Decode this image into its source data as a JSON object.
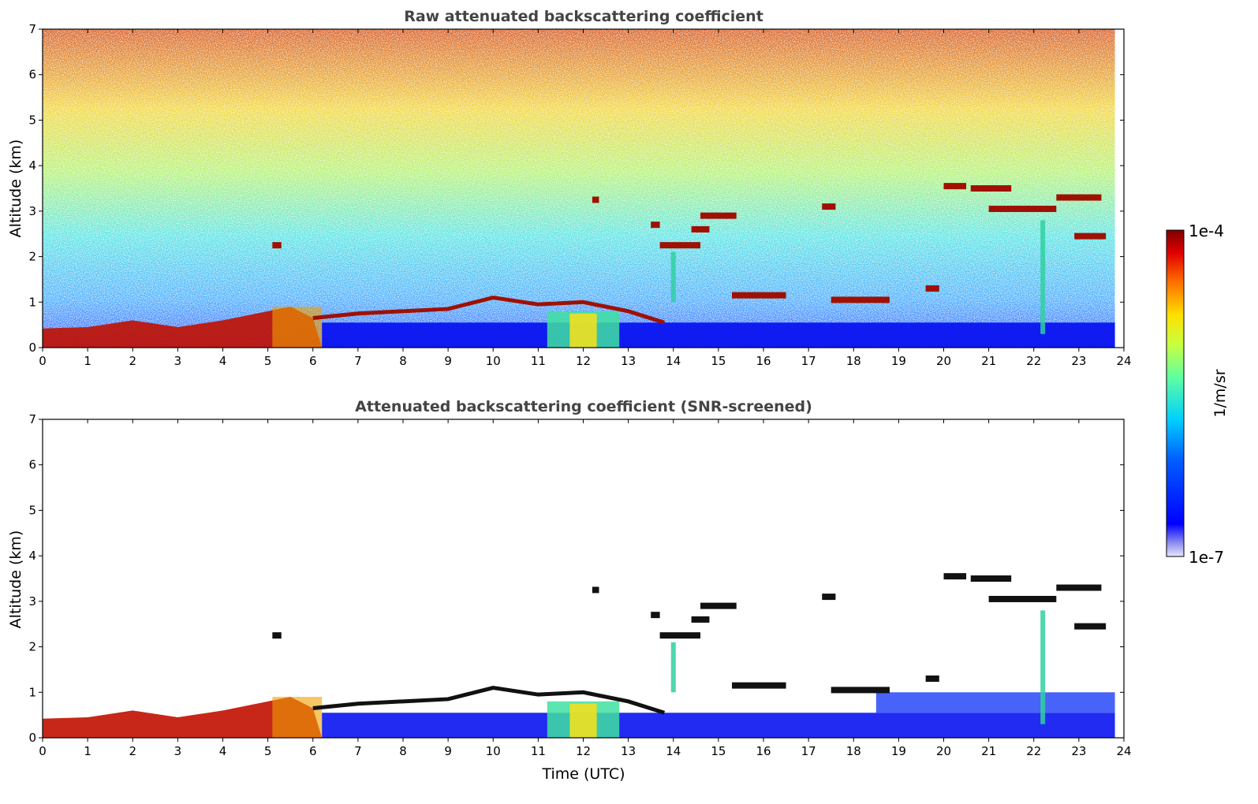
{
  "chart_data": [
    {
      "type": "heatmap",
      "title": "Raw attenuated backscattering coefficient",
      "xlabel": "",
      "ylabel": "Altitude (km)",
      "xlim": [
        0,
        24
      ],
      "ylim": [
        0,
        7
      ],
      "x_ticks": [
        "0",
        "1",
        "2",
        "3",
        "4",
        "5",
        "6",
        "7",
        "8",
        "9",
        "10",
        "11",
        "12",
        "13",
        "14",
        "15",
        "16",
        "17",
        "18",
        "19",
        "20",
        "21",
        "22",
        "23",
        "24"
      ],
      "y_ticks": [
        "0",
        "1",
        "2",
        "3",
        "4",
        "5",
        "6",
        "7"
      ],
      "data_end_time": 23.8,
      "boundary_layer_top_km": [
        [
          0,
          0.42
        ],
        [
          1,
          0.45
        ],
        [
          2,
          0.6
        ],
        [
          3,
          0.45
        ],
        [
          4,
          0.6
        ],
        [
          5,
          0.8
        ],
        [
          5.5,
          0.9
        ],
        [
          6,
          0.65
        ],
        [
          7,
          0.75
        ],
        [
          8,
          0.8
        ],
        [
          9,
          0.85
        ],
        [
          10,
          1.1
        ],
        [
          11,
          0.95
        ],
        [
          12,
          1.0
        ],
        [
          13,
          0.8
        ],
        [
          13.8,
          0.55
        ]
      ],
      "cloud_layers": [
        {
          "t_start": 5.1,
          "t_end": 5.3,
          "alt_km": 2.25
        },
        {
          "t_start": 12.2,
          "t_end": 12.35,
          "alt_km": 3.25
        },
        {
          "t_start": 13.5,
          "t_end": 13.7,
          "alt_km": 2.7
        },
        {
          "t_start": 13.7,
          "t_end": 14.6,
          "alt_km": 2.25
        },
        {
          "t_start": 14.4,
          "t_end": 14.8,
          "alt_km": 2.6
        },
        {
          "t_start": 14.6,
          "t_end": 15.4,
          "alt_km": 2.9
        },
        {
          "t_start": 15.3,
          "t_end": 16.5,
          "alt_km": 1.15
        },
        {
          "t_start": 17.3,
          "t_end": 17.6,
          "alt_km": 3.1
        },
        {
          "t_start": 17.5,
          "t_end": 18.8,
          "alt_km": 1.05
        },
        {
          "t_start": 20.0,
          "t_end": 20.5,
          "alt_km": 3.55
        },
        {
          "t_start": 20.6,
          "t_end": 21.5,
          "alt_km": 3.5
        },
        {
          "t_start": 21.0,
          "t_end": 22.5,
          "alt_km": 3.05
        },
        {
          "t_start": 22.5,
          "t_end": 23.5,
          "alt_km": 3.3
        },
        {
          "t_start": 22.9,
          "t_end": 23.6,
          "alt_km": 2.45
        },
        {
          "t_start": 19.6,
          "t_end": 19.9,
          "alt_km": 1.3
        }
      ]
    },
    {
      "type": "heatmap",
      "title": "Attenuated backscattering coefficient (SNR-screened)",
      "xlabel": "Time (UTC)",
      "ylabel": "Altitude (km)",
      "xlim": [
        0,
        24
      ],
      "ylim": [
        0,
        7
      ],
      "x_ticks": [
        "0",
        "1",
        "2",
        "3",
        "4",
        "5",
        "6",
        "7",
        "8",
        "9",
        "10",
        "11",
        "12",
        "13",
        "14",
        "15",
        "16",
        "17",
        "18",
        "19",
        "20",
        "21",
        "22",
        "23",
        "24"
      ],
      "y_ticks": [
        "0",
        "1",
        "2",
        "3",
        "4",
        "5",
        "6",
        "7"
      ],
      "data_end_time": 23.8
    }
  ],
  "colorbar": {
    "label": "1/m/sr",
    "min_label": "1e-7",
    "max_label": "1e-4",
    "scale": "log",
    "colormap": "jet"
  }
}
